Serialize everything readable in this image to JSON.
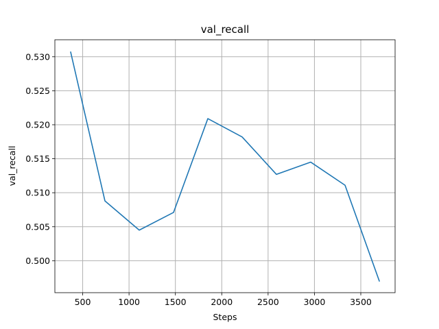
{
  "chart_data": {
    "type": "line",
    "title": "val_recall",
    "xlabel": "Steps",
    "ylabel": "val_recall",
    "xlim": [
      200,
      3870
    ],
    "ylim": [
      0.4953,
      0.5325
    ],
    "xticks": [
      500,
      1000,
      1500,
      2000,
      2500,
      3000,
      3500
    ],
    "xtick_labels": [
      "500",
      "1000",
      "1500",
      "2000",
      "2500",
      "3000",
      "3500"
    ],
    "yticks": [
      0.5,
      0.505,
      0.51,
      0.515,
      0.52,
      0.525,
      0.53
    ],
    "ytick_labels": [
      "0.500",
      "0.505",
      "0.510",
      "0.515",
      "0.520",
      "0.525",
      "0.530"
    ],
    "grid": true,
    "series": [
      {
        "color": "#1f77b4",
        "x": [
          370,
          740,
          1110,
          1480,
          1850,
          2220,
          2590,
          2960,
          3330,
          3700
        ],
        "y": [
          0.5307,
          0.5088,
          0.5045,
          0.5071,
          0.5209,
          0.5182,
          0.5127,
          0.5145,
          0.5111,
          0.497
        ]
      }
    ]
  }
}
